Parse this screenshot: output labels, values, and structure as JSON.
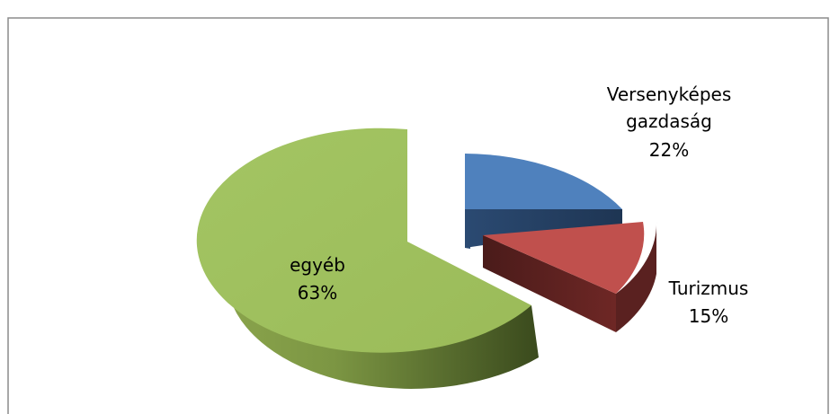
{
  "chart_data": {
    "type": "pie",
    "style": "3d-exploded",
    "legend": "none",
    "slices": [
      {
        "label_lines": [
          "Versenyképes",
          "gazdaság"
        ],
        "percent": "22%",
        "value": 22,
        "color": "#4f81bd"
      },
      {
        "label_lines": [
          "Turizmus"
        ],
        "percent": "15%",
        "value": 15,
        "color": "#c0504d"
      },
      {
        "label_lines": [
          "egyéb"
        ],
        "percent": "63%",
        "value": 63,
        "color": "#9bbb59"
      }
    ]
  }
}
